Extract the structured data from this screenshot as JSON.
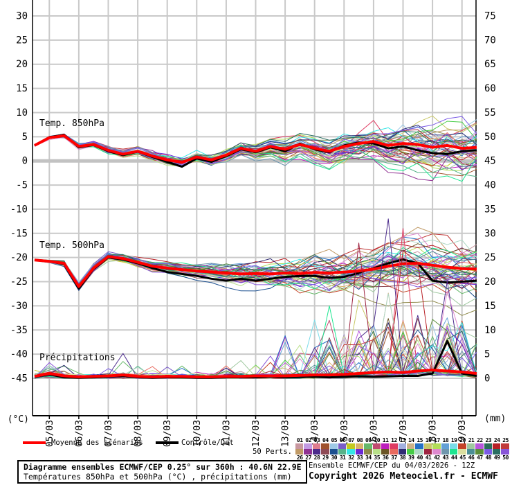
{
  "legend": {
    "mean_label": "Moyenne des scénarios",
    "control_label": "Contrôle/Det",
    "mean_color": "#ff0000",
    "control_color": "#000000",
    "perts_count_label": "50 Perts."
  },
  "ensemble": {
    "members": 50,
    "numbers_top": [
      "01",
      "02",
      "03",
      "04",
      "05",
      "06",
      "07",
      "08",
      "09",
      "10",
      "11",
      "12",
      "13",
      "14",
      "15",
      "16",
      "17",
      "18",
      "19",
      "20",
      "21",
      "22",
      "23",
      "24",
      "25"
    ],
    "numbers_bottom": [
      "26",
      "27",
      "28",
      "29",
      "30",
      "31",
      "32",
      "33",
      "34",
      "35",
      "36",
      "37",
      "38",
      "39",
      "40",
      "41",
      "42",
      "43",
      "44",
      "45",
      "46",
      "47",
      "48",
      "49",
      "50"
    ],
    "colors_top": [
      "#c897a0",
      "#c39ae3",
      "#df7d8f",
      "#a0522d",
      "#9ecae6",
      "#7a5cc8",
      "#c3c91e",
      "#d9b369",
      "#66b86a",
      "#c14a70",
      "#bd1ebd",
      "#df3a62",
      "#a2afe0",
      "#ccb287",
      "#2470c6",
      "#c9c868",
      "#b2de57",
      "#63a0d6",
      "#79dce8",
      "#c44327",
      "#9fc89f",
      "#b856dd",
      "#2a6e58",
      "#b82026",
      "#c13a3a"
    ],
    "colors_bottom": [
      "#c09a66",
      "#8f3192",
      "#4b2b8c",
      "#8f4a55",
      "#1b4f8f",
      "#57b389",
      "#35e6e6",
      "#6a28d6",
      "#8f8a4a",
      "#b8e089",
      "#6b5526",
      "#e86a5e",
      "#2f2b73",
      "#46cc46",
      "#b0d8c6",
      "#9e2441",
      "#df89cf",
      "#6f96ad",
      "#1ee690",
      "#dbdf9f",
      "#4b8f96",
      "#5b8f3b",
      "#7a5ae6",
      "#2a6e62",
      "#8956d8"
    ]
  },
  "chart_data": {
    "type": "line",
    "title": "Diagramme ensembles ECMWF/CEP 0.25° sur 360h : 40.6N 22.9E",
    "grid": true,
    "legend_position": "bottom",
    "x": {
      "tick_labels": [
        "05/03",
        "06/03",
        "07/03",
        "08/03",
        "09/03",
        "10/03",
        "11/03",
        "12/03",
        "13/03",
        "14/03",
        "15/03",
        "16/03",
        "17/03",
        "18/03",
        "19/03"
      ],
      "start": "04/03 12Z",
      "points": 31,
      "step_hours": 12
    },
    "y_left": {
      "label": "(°C)",
      "min": -45,
      "max": 30,
      "tick_step": 5,
      "ticks": [
        30,
        25,
        20,
        15,
        10,
        5,
        0,
        -5,
        -10,
        -15,
        -20,
        -25,
        -30,
        -35,
        -40,
        -45
      ]
    },
    "y_right": {
      "label": "(mm)",
      "min": 0,
      "max": 75,
      "tick_step": 5,
      "ticks": [
        75,
        70,
        65,
        60,
        55,
        50,
        45,
        40,
        35,
        30,
        25,
        20,
        15,
        10,
        5,
        0
      ]
    },
    "panels": [
      {
        "name": "Temp. 850hPa",
        "unit": "°C",
        "series": [
          {
            "name": "Moyenne des scénarios",
            "color": "#ff0000",
            "values": [
              3.2,
              4.8,
              5.2,
              3.0,
              3.4,
              2.2,
              1.4,
              2.0,
              1.0,
              0.2,
              -0.3,
              0.8,
              0.2,
              1.2,
              2.6,
              2.0,
              3.0,
              2.4,
              3.4,
              2.6,
              2.0,
              3.0,
              3.6,
              4.0,
              3.2,
              3.6,
              3.4,
              2.8,
              3.2,
              2.6,
              2.8
            ]
          },
          {
            "name": "Contrôle/Det",
            "color": "#000000",
            "values": [
              3.2,
              4.9,
              5.4,
              2.8,
              3.3,
              2.0,
              1.2,
              1.9,
              0.8,
              -0.2,
              -1.2,
              0.5,
              -0.2,
              1.0,
              2.4,
              1.8,
              2.8,
              2.0,
              3.6,
              2.4,
              1.8,
              3.2,
              3.8,
              3.6,
              2.6,
              3.0,
              2.2,
              1.6,
              1.4,
              2.0,
              2.2
            ]
          }
        ],
        "ensemble_spread": [
          0.15,
          0.3,
          0.4,
          0.5,
          0.55,
          0.6,
          0.7,
          0.75,
          0.8,
          0.9,
          1.0,
          1.0,
          1.1,
          1.2,
          1.3,
          1.4,
          1.5,
          1.7,
          1.9,
          2.1,
          2.3,
          2.5,
          2.7,
          2.9,
          3.1,
          3.3,
          3.5,
          3.7,
          3.9,
          4.1,
          4.3
        ],
        "clamp": [
          -12,
          13
        ]
      },
      {
        "name": "Temp. 500hPa",
        "unit": "°C",
        "series": [
          {
            "name": "Moyenne des scénarios",
            "color": "#ff0000",
            "values": [
              -20.5,
              -20.8,
              -21.2,
              -26.0,
              -22.2,
              -19.8,
              -20.2,
              -21.0,
              -21.8,
              -22.2,
              -22.5,
              -22.8,
              -23.0,
              -23.2,
              -23.4,
              -23.3,
              -23.4,
              -23.2,
              -23.3,
              -23.1,
              -23.2,
              -23.0,
              -22.8,
              -22.4,
              -21.8,
              -21.3,
              -21.2,
              -21.6,
              -22.0,
              -22.3,
              -22.4
            ]
          },
          {
            "name": "Contrôle/Det",
            "color": "#000000",
            "values": [
              -20.5,
              -20.8,
              -21.4,
              -26.4,
              -22.4,
              -20.0,
              -20.4,
              -21.2,
              -22.2,
              -23.0,
              -23.4,
              -23.8,
              -24.4,
              -24.8,
              -24.4,
              -24.8,
              -24.4,
              -24.0,
              -23.8,
              -23.8,
              -24.2,
              -24.0,
              -23.2,
              -22.2,
              -21.2,
              -20.4,
              -21.2,
              -24.8,
              -25.2,
              -25.0,
              -24.8
            ]
          }
        ],
        "ensemble_spread": [
          0.15,
          0.3,
          0.5,
          0.8,
          0.7,
          0.6,
          0.7,
          0.8,
          0.9,
          1.0,
          1.1,
          1.3,
          1.5,
          1.7,
          1.9,
          2.1,
          2.3,
          2.5,
          2.7,
          2.9,
          3.0,
          3.1,
          3.2,
          3.3,
          3.4,
          3.5,
          3.6,
          3.7,
          3.8,
          3.9,
          4.0
        ],
        "clamp": [
          -32,
          -13
        ]
      },
      {
        "name": "Précipitations",
        "unit": "mm",
        "series": [
          {
            "name": "Moyenne des scénarios",
            "color": "#ff0000",
            "values": [
              0.4,
              1.0,
              0.5,
              0.3,
              0.4,
              0.5,
              0.7,
              0.4,
              0.3,
              0.4,
              0.4,
              0.3,
              0.3,
              0.4,
              0.4,
              0.5,
              0.5,
              0.5,
              0.6,
              0.7,
              0.7,
              0.8,
              1.0,
              1.2,
              1.3,
              1.2,
              1.5,
              1.7,
              1.5,
              1.3,
              1.0
            ]
          },
          {
            "name": "Contrôle/Det",
            "color": "#000000",
            "values": [
              0.3,
              0.8,
              0.2,
              0.1,
              0.2,
              0.3,
              0.5,
              0.2,
              0.1,
              0.2,
              0.2,
              0.1,
              0.1,
              0.2,
              0.2,
              0.2,
              0.3,
              0.2,
              0.3,
              0.3,
              0.2,
              0.3,
              0.4,
              0.3,
              0.4,
              0.5,
              0.5,
              1.0,
              7.7,
              1.0,
              0.5
            ]
          }
        ],
        "ensemble_spike_prob": [
          0.05,
          0.15,
          0.08,
          0.05,
          0.05,
          0.06,
          0.08,
          0.05,
          0.04,
          0.05,
          0.05,
          0.04,
          0.05,
          0.06,
          0.06,
          0.08,
          0.1,
          0.1,
          0.12,
          0.15,
          0.18,
          0.22,
          0.25,
          0.28,
          0.3,
          0.32,
          0.32,
          0.32,
          0.3,
          0.28,
          0.25
        ],
        "ensemble_spike_max": [
          1.5,
          2,
          1.5,
          1,
          1,
          1.5,
          2,
          1.5,
          1,
          1,
          1,
          1,
          1.5,
          2,
          2,
          3,
          4,
          4,
          5,
          6,
          8,
          9,
          10,
          11,
          12,
          12,
          12,
          12,
          12,
          11,
          10
        ],
        "highlight_spikes": [
          {
            "member": 40,
            "index": 22,
            "value": 28
          },
          {
            "member": 11,
            "index": 25,
            "value": 31
          },
          {
            "member": 23,
            "index": 26,
            "value": 24
          },
          {
            "member": 41,
            "index": 28,
            "value": 18
          },
          {
            "member": 9,
            "index": 20,
            "value": 12
          }
        ]
      }
    ]
  },
  "footer": {
    "box_line1": "Diagramme ensembles ECMWF/CEP 0.25° sur 360h : 40.6N 22.9E",
    "box_line2": "Températures 850hPa et 500hPa (°C) , précipitations (mm)",
    "right_line1": "Ensemble ECMWF/CEP du 04/03/2026 - 12Z",
    "right_line2": "Copyright 2026 Meteociel.fr - ECMWF"
  },
  "colors": {
    "grid": "#c9c9c9",
    "zero_line": "#c2c2c2",
    "axis": "#000000",
    "background": "#ffffff"
  }
}
